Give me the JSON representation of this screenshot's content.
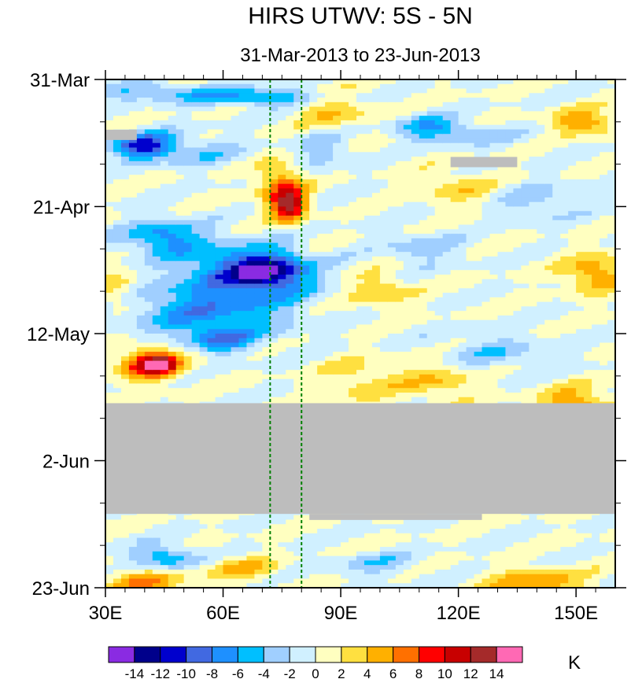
{
  "chart_data": {
    "type": "heatmap",
    "title": "HIRS UTWV: 5S - 5N",
    "subtitle": "31-Mar-2013 to 23-Jun-2013",
    "x_range": [
      30,
      160
    ],
    "x_ticks": [
      {
        "value": 30,
        "label": "30E"
      },
      {
        "value": 60,
        "label": "60E"
      },
      {
        "value": 90,
        "label": "90E"
      },
      {
        "value": 120,
        "label": "120E"
      },
      {
        "value": 150,
        "label": "150E"
      }
    ],
    "y_range_days": [
      0,
      84
    ],
    "y_ticks": [
      {
        "value": 0,
        "label": "31-Mar"
      },
      {
        "value": 21,
        "label": "21-Apr"
      },
      {
        "value": 42,
        "label": "12-May"
      },
      {
        "value": 63,
        "label": "2-Jun"
      },
      {
        "value": 84,
        "label": "23-Jun"
      }
    ],
    "reference_lines_x": [
      72,
      80
    ],
    "colorbar": {
      "units": "K",
      "levels": [
        -14,
        -12,
        -10,
        -8,
        -6,
        -4,
        -2,
        0,
        2,
        4,
        6,
        8,
        10,
        12,
        14
      ],
      "colors": [
        "#8a2be2",
        "#00008b",
        "#0000cd",
        "#4169e1",
        "#1e90ff",
        "#00bfff",
        "#a0cfff",
        "#d0f0ff",
        "#ffffc0",
        "#ffe040",
        "#ffb000",
        "#ff7000",
        "#ff0000",
        "#c80000",
        "#a52a2a",
        "#ff69b4"
      ]
    },
    "missing_color": "#bdbdbd"
  }
}
